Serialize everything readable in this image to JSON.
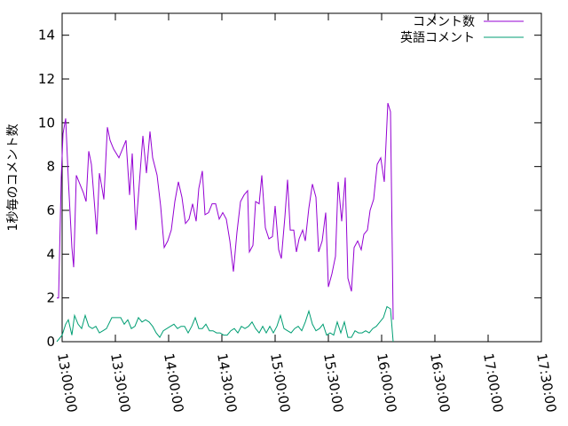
{
  "chart_data": {
    "type": "line",
    "title": "",
    "xlabel": "",
    "ylabel": "1秒毎のコメント数",
    "ylim": [
      0,
      15
    ],
    "yticks": [
      0,
      2,
      4,
      6,
      8,
      10,
      12,
      14
    ],
    "xlim": [
      "13:00:00",
      "17:30:00"
    ],
    "xticks": [
      "13:00:00",
      "13:30:00",
      "14:00:00",
      "14:30:00",
      "15:00:00",
      "15:30:00",
      "16:00:00",
      "16:30:00",
      "17:00:00",
      "17:30:00"
    ],
    "grid": false,
    "legend_position": "top-right",
    "series": [
      {
        "name": "コメント数",
        "color": "#9400d3",
        "points": [
          [
            "12:57:00",
            2.0
          ],
          [
            "12:58:00",
            2.0
          ],
          [
            "12:59:30",
            7.5
          ],
          [
            "13:00:30",
            9.5
          ],
          [
            "13:02:00",
            10.2
          ],
          [
            "13:03:30",
            7.4
          ],
          [
            "13:05:30",
            4.3
          ],
          [
            "13:06:30",
            3.4
          ],
          [
            "13:08:00",
            7.6
          ],
          [
            "13:10:00",
            7.2
          ],
          [
            "13:12:00",
            6.8
          ],
          [
            "13:13:30",
            6.4
          ],
          [
            "13:15:00",
            8.7
          ],
          [
            "13:16:30",
            8.1
          ],
          [
            "13:18:30",
            6.0
          ],
          [
            "13:19:30",
            4.9
          ],
          [
            "13:21:00",
            7.7
          ],
          [
            "13:22:30",
            7.0
          ],
          [
            "13:23:30",
            6.5
          ],
          [
            "13:25:30",
            9.8
          ],
          [
            "13:27:00",
            9.2
          ],
          [
            "13:29:00",
            8.8
          ],
          [
            "13:32:00",
            8.4
          ],
          [
            "13:36:00",
            9.2
          ],
          [
            "13:38:00",
            6.7
          ],
          [
            "13:39:30",
            8.6
          ],
          [
            "13:41:30",
            5.1
          ],
          [
            "13:43:00",
            6.7
          ],
          [
            "13:45:30",
            9.4
          ],
          [
            "13:47:30",
            7.7
          ],
          [
            "13:49:30",
            9.6
          ],
          [
            "13:51:00",
            8.4
          ],
          [
            "13:53:30",
            7.6
          ],
          [
            "13:55:30",
            6.2
          ],
          [
            "13:57:30",
            4.3
          ],
          [
            "13:59:30",
            4.6
          ],
          [
            "14:01:30",
            5.1
          ],
          [
            "14:03:30",
            6.4
          ],
          [
            "14:05:30",
            7.3
          ],
          [
            "14:07:30",
            6.6
          ],
          [
            "14:09:30",
            5.4
          ],
          [
            "14:11:30",
            5.6
          ],
          [
            "14:13:30",
            6.3
          ],
          [
            "14:15:30",
            5.5
          ],
          [
            "14:17:00",
            7.0
          ],
          [
            "14:19:00",
            7.8
          ],
          [
            "14:20:30",
            5.8
          ],
          [
            "14:22:30",
            5.9
          ],
          [
            "14:24:30",
            6.3
          ],
          [
            "14:26:30",
            6.3
          ],
          [
            "14:28:30",
            5.6
          ],
          [
            "14:30:30",
            5.9
          ],
          [
            "14:32:30",
            5.6
          ],
          [
            "14:34:30",
            4.6
          ],
          [
            "14:36:30",
            3.2
          ],
          [
            "14:38:30",
            5.0
          ],
          [
            "14:40:30",
            6.4
          ],
          [
            "14:42:30",
            6.7
          ],
          [
            "14:44:30",
            6.9
          ],
          [
            "14:45:30",
            4.1
          ],
          [
            "14:47:30",
            4.4
          ],
          [
            "14:49:00",
            6.4
          ],
          [
            "14:51:00",
            6.3
          ],
          [
            "14:52:30",
            7.6
          ],
          [
            "14:54:30",
            5.2
          ],
          [
            "14:56:30",
            4.7
          ],
          [
            "14:58:30",
            4.8
          ],
          [
            "15:00:00",
            6.2
          ],
          [
            "15:02:00",
            4.2
          ],
          [
            "15:03:30",
            3.8
          ],
          [
            "15:05:30",
            5.7
          ],
          [
            "15:07:00",
            7.4
          ],
          [
            "15:08:30",
            5.1
          ],
          [
            "15:10:30",
            5.1
          ],
          [
            "15:12:00",
            4.1
          ],
          [
            "15:13:30",
            4.7
          ],
          [
            "15:15:30",
            5.1
          ],
          [
            "15:17:00",
            4.6
          ],
          [
            "15:19:00",
            6.1
          ],
          [
            "15:21:00",
            7.2
          ],
          [
            "15:23:00",
            6.6
          ],
          [
            "15:24:30",
            4.1
          ],
          [
            "15:26:30",
            4.6
          ],
          [
            "15:28:30",
            5.9
          ],
          [
            "15:30:00",
            2.5
          ],
          [
            "15:32:00",
            3.1
          ],
          [
            "15:34:00",
            3.9
          ],
          [
            "15:35:30",
            7.3
          ],
          [
            "15:37:30",
            5.5
          ],
          [
            "15:39:30",
            7.5
          ],
          [
            "15:41:00",
            2.9
          ],
          [
            "15:43:00",
            2.3
          ],
          [
            "15:44:30",
            4.3
          ],
          [
            "15:46:30",
            4.6
          ],
          [
            "15:48:30",
            4.2
          ],
          [
            "15:50:00",
            4.9
          ],
          [
            "15:52:00",
            5.1
          ],
          [
            "15:53:30",
            6.0
          ],
          [
            "15:55:30",
            6.5
          ],
          [
            "15:57:30",
            8.1
          ],
          [
            "15:59:30",
            8.4
          ],
          [
            "16:01:30",
            7.3
          ],
          [
            "16:03:30",
            10.9
          ],
          [
            "16:05:00",
            10.5
          ],
          [
            "16:06:30",
            1.0
          ]
        ]
      },
      {
        "name": "英語コメント",
        "color": "#009e73",
        "points": [
          [
            "12:57:00",
            0.0
          ],
          [
            "13:00:00",
            0.3
          ],
          [
            "13:02:00",
            0.8
          ],
          [
            "13:03:30",
            1.0
          ],
          [
            "13:05:30",
            0.3
          ],
          [
            "13:07:00",
            1.2
          ],
          [
            "13:09:00",
            0.8
          ],
          [
            "13:11:00",
            0.6
          ],
          [
            "13:13:00",
            1.2
          ],
          [
            "13:15:00",
            0.7
          ],
          [
            "13:17:00",
            0.6
          ],
          [
            "13:19:00",
            0.7
          ],
          [
            "13:21:00",
            0.4
          ],
          [
            "13:23:00",
            0.5
          ],
          [
            "13:25:00",
            0.6
          ],
          [
            "13:28:00",
            1.1
          ],
          [
            "13:31:00",
            1.1
          ],
          [
            "13:33:00",
            1.1
          ],
          [
            "13:35:00",
            0.8
          ],
          [
            "13:37:00",
            1.0
          ],
          [
            "13:39:00",
            0.6
          ],
          [
            "13:41:00",
            0.7
          ],
          [
            "13:43:00",
            1.1
          ],
          [
            "13:45:00",
            0.9
          ],
          [
            "13:47:00",
            1.0
          ],
          [
            "13:49:00",
            0.9
          ],
          [
            "13:51:00",
            0.7
          ],
          [
            "13:53:00",
            0.4
          ],
          [
            "13:55:00",
            0.2
          ],
          [
            "13:57:00",
            0.5
          ],
          [
            "13:59:00",
            0.6
          ],
          [
            "14:01:00",
            0.7
          ],
          [
            "14:03:00",
            0.8
          ],
          [
            "14:05:00",
            0.6
          ],
          [
            "14:07:00",
            0.7
          ],
          [
            "14:09:00",
            0.7
          ],
          [
            "14:11:00",
            0.4
          ],
          [
            "14:13:00",
            0.7
          ],
          [
            "14:15:00",
            1.1
          ],
          [
            "14:17:00",
            0.6
          ],
          [
            "14:19:00",
            0.6
          ],
          [
            "14:21:00",
            0.8
          ],
          [
            "14:23:00",
            0.5
          ],
          [
            "14:25:00",
            0.5
          ],
          [
            "14:27:00",
            0.4
          ],
          [
            "14:29:00",
            0.4
          ],
          [
            "14:31:00",
            0.3
          ],
          [
            "14:33:00",
            0.3
          ],
          [
            "14:35:00",
            0.5
          ],
          [
            "14:37:00",
            0.6
          ],
          [
            "14:39:00",
            0.4
          ],
          [
            "14:41:00",
            0.7
          ],
          [
            "14:43:00",
            0.6
          ],
          [
            "14:45:00",
            0.7
          ],
          [
            "14:47:00",
            0.9
          ],
          [
            "14:49:00",
            0.6
          ],
          [
            "14:51:00",
            0.4
          ],
          [
            "14:53:00",
            0.7
          ],
          [
            "14:55:00",
            0.4
          ],
          [
            "14:57:00",
            0.7
          ],
          [
            "14:59:00",
            0.4
          ],
          [
            "15:01:00",
            0.7
          ],
          [
            "15:03:00",
            1.2
          ],
          [
            "15:05:00",
            0.6
          ],
          [
            "15:07:00",
            0.5
          ],
          [
            "15:09:00",
            0.4
          ],
          [
            "15:11:00",
            0.6
          ],
          [
            "15:13:00",
            0.7
          ],
          [
            "15:15:00",
            0.5
          ],
          [
            "15:17:00",
            0.9
          ],
          [
            "15:19:00",
            1.4
          ],
          [
            "15:21:00",
            0.8
          ],
          [
            "15:23:00",
            0.5
          ],
          [
            "15:25:00",
            0.6
          ],
          [
            "15:27:00",
            0.8
          ],
          [
            "15:29:00",
            0.3
          ],
          [
            "15:31:00",
            0.4
          ],
          [
            "15:33:00",
            0.3
          ],
          [
            "15:35:00",
            0.9
          ],
          [
            "15:37:00",
            0.4
          ],
          [
            "15:39:00",
            0.9
          ],
          [
            "15:41:00",
            0.2
          ],
          [
            "15:43:00",
            0.2
          ],
          [
            "15:45:00",
            0.5
          ],
          [
            "15:47:00",
            0.4
          ],
          [
            "15:49:00",
            0.4
          ],
          [
            "15:51:00",
            0.5
          ],
          [
            "15:53:00",
            0.4
          ],
          [
            "15:55:00",
            0.6
          ],
          [
            "15:57:00",
            0.7
          ],
          [
            "15:59:00",
            0.9
          ],
          [
            "16:01:00",
            1.1
          ],
          [
            "16:03:00",
            1.6
          ],
          [
            "16:05:00",
            1.5
          ],
          [
            "16:06:30",
            0.0
          ]
        ]
      }
    ]
  }
}
